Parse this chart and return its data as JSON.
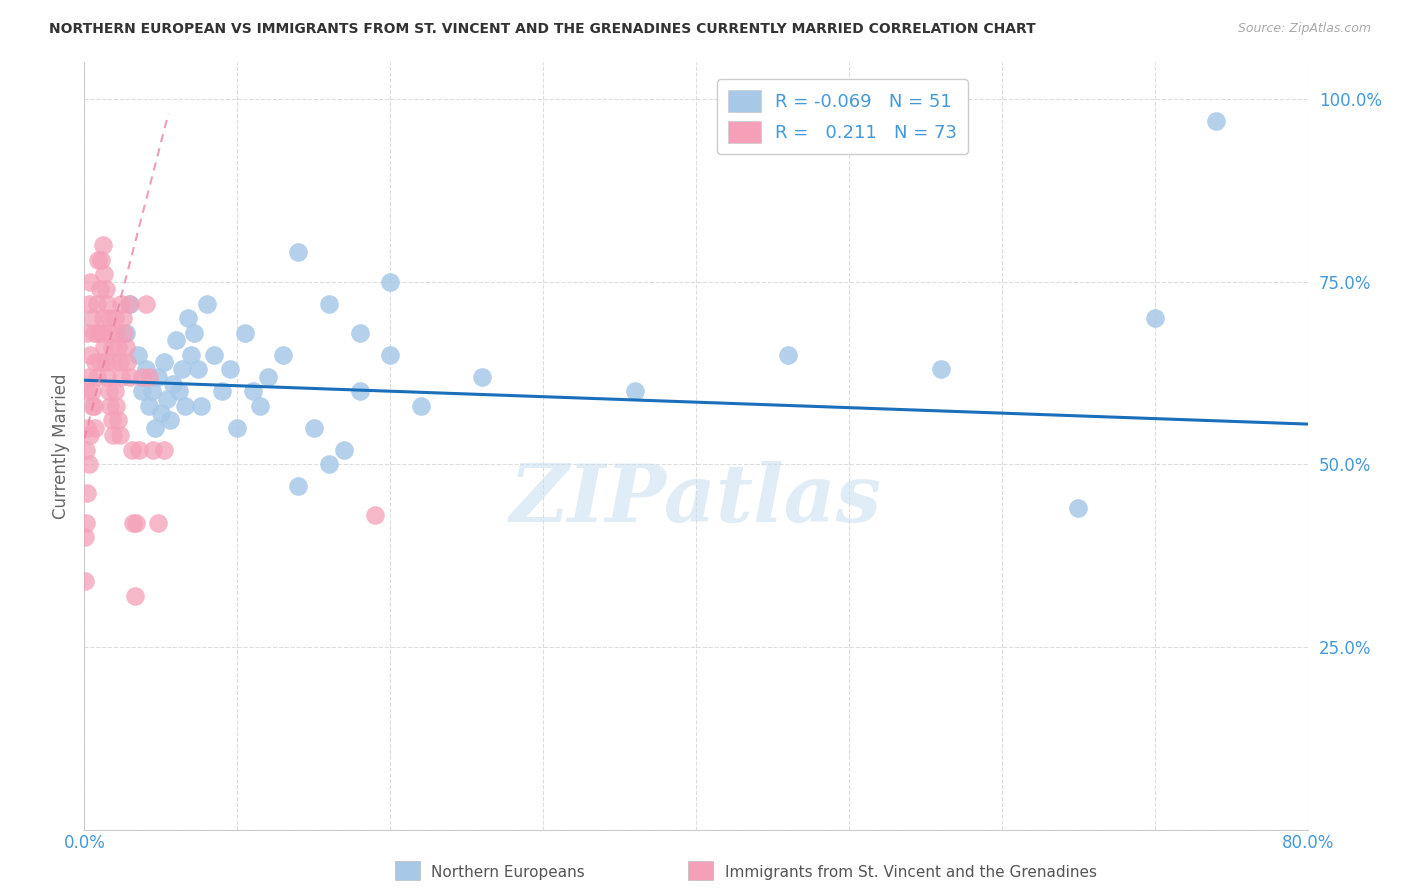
{
  "title": "NORTHERN EUROPEAN VS IMMIGRANTS FROM ST. VINCENT AND THE GRENADINES CURRENTLY MARRIED CORRELATION CHART",
  "source": "Source: ZipAtlas.com",
  "xlabel_blue": "Northern Europeans",
  "xlabel_pink": "Immigrants from St. Vincent and the Grenadines",
  "ylabel": "Currently Married",
  "xmin": 0.0,
  "xmax": 0.8,
  "ymin": 0.0,
  "ymax": 1.05,
  "r_blue": -0.069,
  "n_blue": 51,
  "r_pink": 0.211,
  "n_pink": 73,
  "blue_color": "#a8c8e8",
  "pink_color": "#f4a0b8",
  "trend_blue_color": "#1a6fba",
  "trend_pink_color": "#e87da0",
  "watermark": "ZIPatlas",
  "blue_points_x": [
    0.027,
    0.03,
    0.035,
    0.038,
    0.04,
    0.042,
    0.044,
    0.046,
    0.048,
    0.05,
    0.052,
    0.054,
    0.056,
    0.058,
    0.06,
    0.062,
    0.064,
    0.066,
    0.068,
    0.07,
    0.072,
    0.074,
    0.076,
    0.08,
    0.085,
    0.09,
    0.095,
    0.1,
    0.105,
    0.11,
    0.115,
    0.12,
    0.13,
    0.14,
    0.15,
    0.16,
    0.17,
    0.18,
    0.2,
    0.22,
    0.14,
    0.16,
    0.18,
    0.2,
    0.26,
    0.36,
    0.46,
    0.56,
    0.65,
    0.7,
    0.74
  ],
  "blue_points_y": [
    0.68,
    0.72,
    0.65,
    0.6,
    0.63,
    0.58,
    0.6,
    0.55,
    0.62,
    0.57,
    0.64,
    0.59,
    0.56,
    0.61,
    0.67,
    0.6,
    0.63,
    0.58,
    0.7,
    0.65,
    0.68,
    0.63,
    0.58,
    0.72,
    0.65,
    0.6,
    0.63,
    0.55,
    0.68,
    0.6,
    0.58,
    0.62,
    0.65,
    0.47,
    0.55,
    0.5,
    0.52,
    0.6,
    0.65,
    0.58,
    0.79,
    0.72,
    0.68,
    0.75,
    0.62,
    0.6,
    0.65,
    0.63,
    0.44,
    0.7,
    0.97
  ],
  "pink_points_x": [
    0.0005,
    0.001,
    0.0015,
    0.002,
    0.002,
    0.003,
    0.003,
    0.004,
    0.004,
    0.005,
    0.005,
    0.006,
    0.006,
    0.007,
    0.007,
    0.008,
    0.008,
    0.009,
    0.009,
    0.01,
    0.01,
    0.011,
    0.011,
    0.012,
    0.012,
    0.013,
    0.013,
    0.014,
    0.014,
    0.015,
    0.015,
    0.016,
    0.016,
    0.017,
    0.017,
    0.018,
    0.018,
    0.019,
    0.019,
    0.02,
    0.02,
    0.021,
    0.021,
    0.022,
    0.022,
    0.023,
    0.023,
    0.024,
    0.024,
    0.025,
    0.026,
    0.027,
    0.028,
    0.029,
    0.03,
    0.031,
    0.032,
    0.033,
    0.034,
    0.036,
    0.038,
    0.04,
    0.042,
    0.045,
    0.048,
    0.052,
    0.0005,
    0.001,
    0.002,
    0.003,
    0.004,
    0.005,
    0.19
  ],
  "pink_points_y": [
    0.4,
    0.52,
    0.6,
    0.68,
    0.55,
    0.72,
    0.62,
    0.75,
    0.65,
    0.7,
    0.6,
    0.68,
    0.58,
    0.64,
    0.55,
    0.72,
    0.62,
    0.78,
    0.68,
    0.74,
    0.64,
    0.78,
    0.68,
    0.8,
    0.7,
    0.76,
    0.66,
    0.74,
    0.64,
    0.72,
    0.62,
    0.7,
    0.6,
    0.68,
    0.58,
    0.66,
    0.56,
    0.64,
    0.54,
    0.7,
    0.6,
    0.68,
    0.58,
    0.66,
    0.56,
    0.64,
    0.54,
    0.72,
    0.62,
    0.7,
    0.68,
    0.66,
    0.64,
    0.72,
    0.62,
    0.52,
    0.42,
    0.32,
    0.42,
    0.52,
    0.62,
    0.72,
    0.62,
    0.52,
    0.42,
    0.52,
    0.34,
    0.42,
    0.46,
    0.5,
    0.54,
    0.58,
    0.43
  ]
}
